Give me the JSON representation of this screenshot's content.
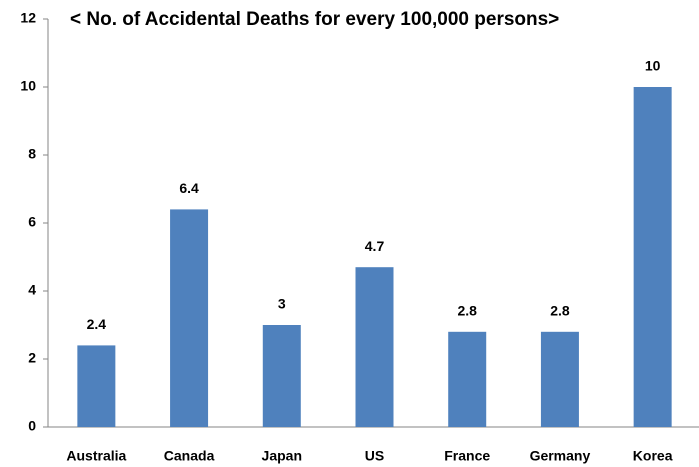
{
  "chart_data": {
    "type": "bar",
    "title": "< No. of Accidental Deaths for every 100,000 persons>",
    "categories": [
      "Australia",
      "Canada",
      "Japan",
      "US",
      "France",
      "Germany",
      "Korea"
    ],
    "values": [
      2.4,
      6.4,
      3,
      4.7,
      2.8,
      2.8,
      10
    ],
    "color": "#4f81bd",
    "ylim": [
      0,
      12
    ],
    "yticks": [
      0,
      2,
      4,
      6,
      8,
      10,
      12
    ],
    "grid": false
  }
}
